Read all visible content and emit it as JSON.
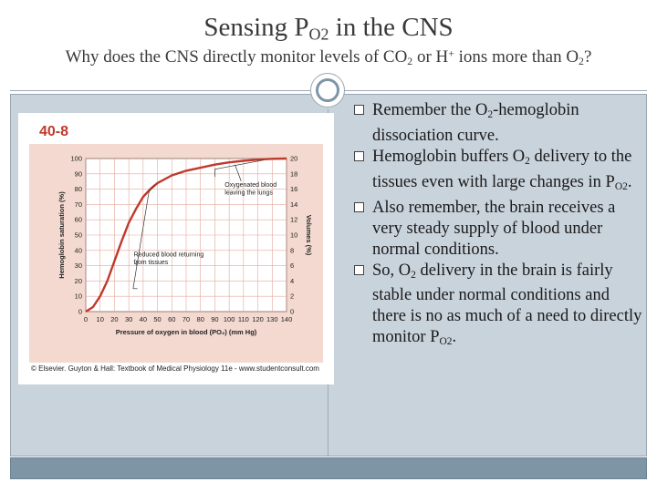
{
  "slide": {
    "title": {
      "prefix": "Sensing P",
      "sub": "O2",
      "suffix": " in the CNS"
    },
    "subtitle": {
      "p1": "Why does the CNS directly monitor levels of CO",
      "sub1": "2",
      "p2": " or H",
      "sup1": "+",
      "p3": " ions more than O",
      "sub2": "2",
      "p4": "?"
    },
    "bullets": [
      {
        "a": "Remember the O",
        "sub": "2",
        "b": "-hemoglobin dissociation curve."
      },
      {
        "a": "Hemoglobin buffers O",
        "sub": "2",
        "b": " delivery to the tissues even with large changes in P",
        "sub2": "O2",
        "c": "."
      },
      {
        "a": "Also remember, the brain receives a very steady supply of blood under normal conditions."
      },
      {
        "a": "So, O",
        "sub": "2",
        "b": " delivery in the brain is fairly stable under normal conditions and there is no as much of a need to directly monitor P",
        "sub2": "O2",
        "c": "."
      }
    ],
    "colors": {
      "accent": "#7e95a6",
      "panel": "#c9d3dc",
      "figure_label": "#c03a2b",
      "plot_bg": "#f3d9d0"
    }
  },
  "figure": {
    "label": "40-8",
    "credit": "© Elsevier. Guyton & Hall: Textbook of Medical Physiology 11e - www.studentconsult.com"
  },
  "chart_data": {
    "type": "line",
    "xlabel": "Pressure of oxygen in blood (PO₂) (mm Hg)",
    "ylabel": "Hemoglobin saturation (%)",
    "y2label": "Volumes (%)",
    "xlim": [
      0,
      140
    ],
    "ylim": [
      0,
      100
    ],
    "y2lim": [
      0,
      20
    ],
    "x_ticks": [
      0,
      10,
      20,
      30,
      40,
      50,
      60,
      70,
      80,
      90,
      100,
      110,
      120,
      130,
      140
    ],
    "y_ticks": [
      0,
      10,
      20,
      30,
      40,
      50,
      60,
      70,
      80,
      90,
      100
    ],
    "y2_ticks": [
      0,
      2,
      4,
      6,
      8,
      10,
      12,
      14,
      16,
      18,
      20
    ],
    "grid": true,
    "series": [
      {
        "x": [
          0,
          5,
          10,
          15,
          20,
          25,
          30,
          35,
          40,
          45,
          50,
          60,
          70,
          80,
          90,
          100,
          110,
          120,
          130,
          140
        ],
        "values": [
          0,
          3,
          10,
          20,
          33,
          46,
          58,
          67,
          75,
          80,
          84,
          89,
          92,
          94,
          96,
          97.5,
          98.5,
          99.3,
          99.8,
          100
        ]
      }
    ],
    "annotations": [
      {
        "text": [
          "Oxygenated blood",
          "leaving the lungs"
        ],
        "x": 102,
        "y": 84
      },
      {
        "text": [
          "Reduced blood returning",
          "from tissues"
        ],
        "x": 36,
        "y": 30
      }
    ]
  }
}
